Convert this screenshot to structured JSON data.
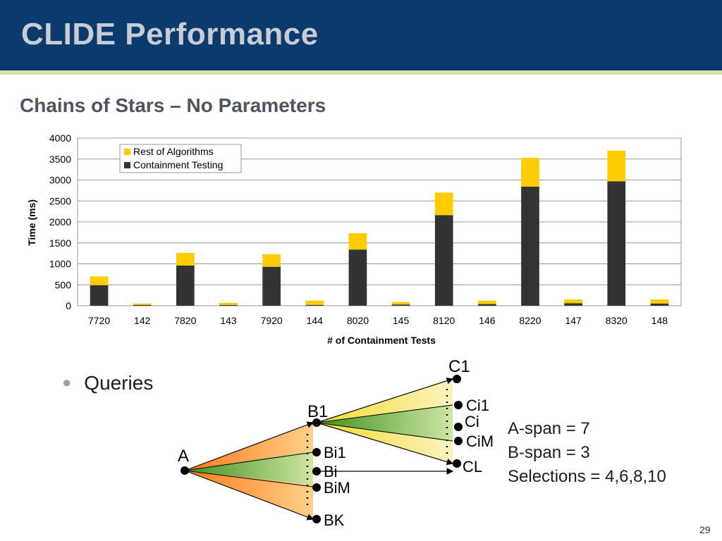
{
  "slide": {
    "title": "CLIDE Performance",
    "subtitle": "Chains of Stars – No Parameters",
    "bullet": "Queries",
    "page_number": "29",
    "stats": [
      "A-span = 7",
      "B-span = 3",
      "Selections = 4,6,8,10"
    ]
  },
  "colors": {
    "title_bar": "#0b3a6e",
    "rest_series": "#ffcc00",
    "containment_series": "#333333"
  },
  "chart_data": {
    "type": "bar",
    "stacked": true,
    "title": "",
    "xlabel": "# of Containment Tests",
    "ylabel": "Time (ms)",
    "ylim": [
      0,
      4000
    ],
    "yticks": [
      0,
      500,
      1000,
      1500,
      2000,
      2500,
      3000,
      3500,
      4000
    ],
    "grid": true,
    "legend_position": "top-left",
    "categories": [
      "7720",
      "142",
      "7820",
      "143",
      "7920",
      "144",
      "8020",
      "145",
      "8120",
      "146",
      "8220",
      "147",
      "8320",
      "148"
    ],
    "series": [
      {
        "name": "Containment Testing",
        "color": "#333333",
        "values": [
          490,
          20,
          960,
          20,
          930,
          20,
          1340,
          30,
          2160,
          40,
          2840,
          60,
          2970,
          50
        ]
      },
      {
        "name": "Rest of Algorithms",
        "color": "#ffcc00",
        "values": [
          210,
          30,
          300,
          50,
          300,
          100,
          390,
          60,
          540,
          80,
          690,
          90,
          730,
          100
        ]
      }
    ],
    "legend_order": [
      "Rest of Algorithms",
      "Containment Testing"
    ]
  },
  "diagram": {
    "node_a": "A",
    "node_b1": "B1",
    "node_bi1": "Bi1",
    "node_bi": "Bi",
    "node_bim": "BiM",
    "node_bk": "BK",
    "node_c1": "C1",
    "node_ci1": "Ci1",
    "node_ci": "Ci",
    "node_cim": "CiM",
    "node_cl": "CL"
  }
}
